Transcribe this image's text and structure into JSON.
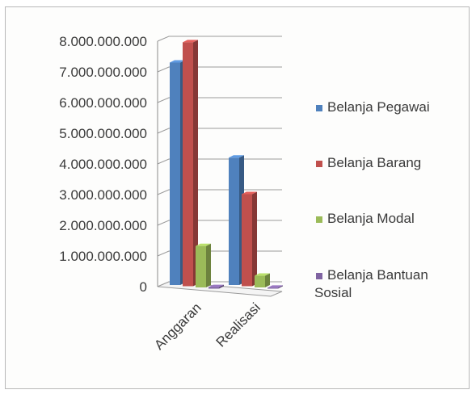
{
  "chart_data": {
    "type": "bar",
    "title": "",
    "xlabel": "",
    "ylabel": "",
    "categories": [
      "Anggaran",
      "Realisasi"
    ],
    "series": [
      {
        "name": "Belanja Pegawai",
        "values": [
          7250000000,
          4150000000
        ]
      },
      {
        "name": "Belanja Barang",
        "values": [
          7950000000,
          3000000000
        ]
      },
      {
        "name": "Belanja Modal",
        "values": [
          1350000000,
          380000000
        ]
      },
      {
        "name": "Belanja Bantuan Sosial",
        "values": [
          50000000,
          30000000
        ]
      }
    ],
    "ylim": [
      0,
      8000000000
    ],
    "yticks": [
      "8.000.000.000",
      "7.000.000.000",
      "6.000.000.000",
      "5.000.000.000",
      "4.000.000.000",
      "3.000.000.000",
      "2.000.000.000",
      "1.000.000.000",
      "0"
    ],
    "ytick_values": [
      8000000000,
      7000000000,
      6000000000,
      5000000000,
      4000000000,
      3000000000,
      2000000000,
      1000000000,
      0
    ],
    "grid": true,
    "legend_position": "right",
    "colors": [
      "#4f81bd",
      "#c0504d",
      "#9bbb59",
      "#8064a2"
    ]
  }
}
